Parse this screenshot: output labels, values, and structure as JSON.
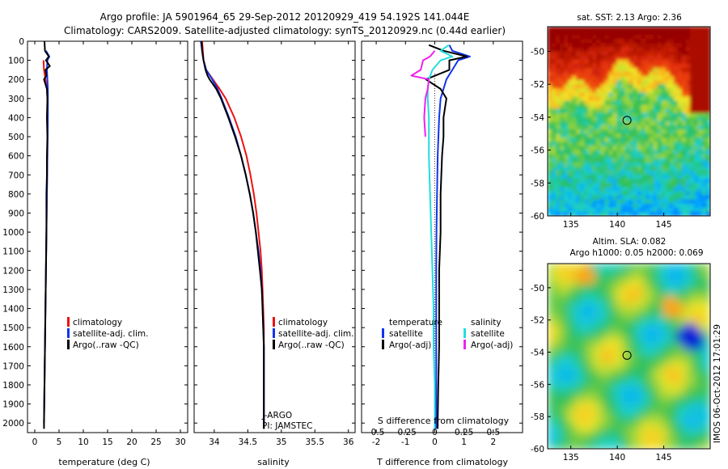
{
  "header": {
    "title_line1": "Argo profile: JA 5901964_65 29-Sep-2012 20120929_419 54.192S 141.044E",
    "title_line2": "Climatology: CARS2009. Satellite-adjusted climatology: synTS_20120929.nc (0.44d earlier)"
  },
  "credit": "IMOS 06-Oct-2012 17:01:29",
  "colors": {
    "climatology": "#ee1111",
    "satellite": "#1133ee",
    "argo": "#000000",
    "satellite_salinity": "#22dddd",
    "argo_salinity": "#ee22ee"
  },
  "chart_data": [
    {
      "type": "line",
      "id": "temperature",
      "xlabel": "temperature (deg C)",
      "xlim": [
        -1.5,
        31.5
      ],
      "ylim": [
        2050,
        0
      ],
      "xticks": [
        0,
        5,
        10,
        15,
        20,
        25,
        30
      ],
      "xtick_labels": [
        "0",
        "5",
        "10",
        "15",
        "20",
        "25",
        "30"
      ],
      "yticks": [
        0,
        100,
        200,
        300,
        400,
        500,
        600,
        700,
        800,
        900,
        1000,
        1100,
        1200,
        1300,
        1400,
        1500,
        1600,
        1700,
        1800,
        1900,
        2000
      ],
      "ytick_labels": [
        "0",
        "100",
        "200",
        "300",
        "400",
        "500",
        "600",
        "700",
        "800",
        "900",
        "1000",
        "1100",
        "1200",
        "1300",
        "1400",
        "1500",
        "1600",
        "1700",
        "1800",
        "1900",
        "2000"
      ],
      "legend": [
        "climatology",
        "satellite-adj. clim.",
        "Argo(..raw -QC)"
      ],
      "legend_position": "center-right",
      "series": [
        {
          "name": "climatology",
          "color": "#ee1111",
          "depth": [
            100,
            150,
            200,
            250,
            300,
            400,
            600,
            800,
            1000,
            1200,
            1400,
            1600,
            1800,
            2000
          ],
          "values": [
            1.8,
            1.9,
            2.2,
            2.5,
            2.6,
            2.6,
            2.6,
            2.5,
            2.4,
            2.3,
            2.2,
            2.1,
            2.0,
            1.9
          ]
        },
        {
          "name": "satellite-adj. clim.",
          "color": "#1133ee",
          "depth": [
            50,
            80,
            100,
            150,
            200,
            250,
            300,
            400,
            600,
            800,
            1000,
            1200,
            1400,
            1600,
            1800,
            2000
          ],
          "values": [
            2.3,
            3.0,
            2.6,
            2.5,
            2.6,
            2.7,
            2.7,
            2.7,
            2.6,
            2.5,
            2.4,
            2.3,
            2.2,
            2.1,
            2.0,
            1.9
          ]
        },
        {
          "name": "Argo(..raw -QC)",
          "color": "#000000",
          "depth": [
            0,
            50,
            80,
            100,
            130,
            150,
            180,
            200,
            250,
            300,
            400,
            500,
            600,
            700,
            800,
            900,
            1000,
            1200,
            1400,
            1600,
            1800,
            2000,
            2030
          ],
          "values": [
            2.0,
            2.1,
            2.9,
            2.3,
            3.1,
            2.2,
            2.4,
            1.9,
            2.5,
            2.6,
            2.5,
            2.6,
            2.5,
            2.5,
            2.4,
            2.4,
            2.4,
            2.3,
            2.2,
            2.1,
            2.0,
            1.9,
            1.9
          ]
        }
      ]
    },
    {
      "type": "line",
      "id": "salinity",
      "xlabel": "salinity",
      "xlim": [
        33.7,
        36.1
      ],
      "ylim": [
        2050,
        0
      ],
      "xticks": [
        34,
        34.5,
        35,
        35.5,
        36
      ],
      "xtick_labels": [
        "34",
        "34.5",
        "35",
        "35.5",
        "36"
      ],
      "legend": [
        "climatology",
        "satellite-adj. clim.",
        "Argo(..raw -QC)"
      ],
      "legend_position": "center-right",
      "annotations": [
        "J-ARGO",
        "PI: JAMSTEC"
      ],
      "series": [
        {
          "name": "climatology",
          "color": "#ee1111",
          "depth": [
            0,
            50,
            100,
            150,
            200,
            250,
            300,
            400,
            500,
            600,
            700,
            800,
            900,
            1000,
            1100,
            1200,
            1300,
            1400,
            1500,
            1600,
            1800,
            2000,
            2030
          ],
          "values": [
            33.82,
            33.83,
            33.84,
            33.88,
            33.98,
            34.08,
            34.17,
            34.3,
            34.4,
            34.48,
            34.54,
            34.59,
            34.63,
            34.66,
            34.69,
            34.71,
            34.72,
            34.73,
            34.74,
            34.74,
            34.74,
            34.74,
            34.74
          ]
        },
        {
          "name": "satellite-adj. clim.",
          "color": "#1133ee",
          "depth": [
            0,
            50,
            100,
            150,
            200,
            250,
            300,
            400,
            500,
            600,
            700,
            800,
            900,
            1000,
            1100,
            1200,
            1300,
            1400,
            1500,
            1600,
            1800,
            2000,
            2030
          ],
          "values": [
            33.8,
            33.82,
            33.84,
            33.88,
            33.97,
            34.05,
            34.11,
            34.22,
            34.32,
            34.4,
            34.47,
            34.53,
            34.58,
            34.62,
            34.66,
            34.69,
            34.71,
            34.72,
            34.73,
            34.74,
            34.74,
            34.74,
            34.74
          ]
        },
        {
          "name": "Argo(..raw -QC)",
          "color": "#000000",
          "depth": [
            0,
            50,
            100,
            150,
            180,
            200,
            250,
            300,
            400,
            500,
            600,
            700,
            800,
            900,
            1000,
            1100,
            1200,
            1300,
            1400,
            1500,
            1600,
            1800,
            2000,
            2030
          ],
          "values": [
            33.81,
            33.82,
            33.84,
            33.87,
            33.9,
            33.93,
            34.03,
            34.1,
            34.21,
            34.31,
            34.4,
            34.47,
            34.53,
            34.58,
            34.62,
            34.65,
            34.68,
            34.71,
            34.72,
            34.73,
            34.74,
            34.74,
            34.74,
            34.74
          ]
        }
      ]
    },
    {
      "type": "line",
      "id": "differences",
      "xlabel": "T difference from climatology",
      "xlabel2": "S difference from climatology",
      "xlim": [
        -2.5,
        3
      ],
      "x2lim": [
        -0.625,
        0.75
      ],
      "ylim": [
        2050,
        0
      ],
      "xticks": [
        -2,
        -1,
        0,
        1,
        2
      ],
      "xtick_labels": [
        "-2",
        "-1",
        "0",
        "1",
        "2"
      ],
      "x2ticks": [
        -0.5,
        -0.25,
        0,
        0.25,
        0.5
      ],
      "x2tick_labels": [
        "-0.5",
        "-0.25",
        "0",
        "0.25",
        "0.5"
      ],
      "legend_groups": [
        {
          "title": "temperature",
          "entries": [
            "satellite",
            "Argo(-adj)"
          ]
        },
        {
          "title": "salinity",
          "entries": [
            "satellite",
            "Argo(-adj)"
          ]
        }
      ],
      "legend_position": "center-right",
      "series": [
        {
          "name": "temperature satellite",
          "color": "#1133ee",
          "axis": "T",
          "depth": [
            20,
            50,
            80,
            100,
            150,
            200,
            250,
            300,
            400,
            600,
            800,
            1000,
            1200,
            1400,
            1600,
            1800,
            2000,
            2030
          ],
          "values": [
            0.5,
            0.6,
            1.2,
            0.8,
            0.6,
            0.4,
            0.3,
            0.2,
            0.15,
            0.1,
            0.08,
            0.06,
            0.05,
            0.05,
            0.05,
            0.05,
            0.05,
            0.05
          ]
        },
        {
          "name": "temperature Argo(-adj)",
          "color": "#000000",
          "axis": "T",
          "depth": [
            20,
            50,
            80,
            100,
            150,
            200,
            250,
            300,
            400,
            500,
            600,
            800,
            1000,
            1200,
            1400,
            1600,
            1800,
            2000,
            2030
          ],
          "values": [
            -0.2,
            0.3,
            1.1,
            0.5,
            0.5,
            -0.3,
            0.2,
            0.4,
            0.3,
            0.3,
            0.25,
            0.2,
            0.2,
            0.15,
            0.15,
            0.15,
            0.12,
            0.1,
            0.1
          ]
        },
        {
          "name": "salinity satellite",
          "color": "#22dddd",
          "axis": "S",
          "depth": [
            20,
            50,
            80,
            100,
            150,
            200,
            250,
            300,
            400,
            600,
            800,
            1000,
            1200,
            1400,
            1600,
            1800,
            2000,
            2030
          ],
          "values": [
            0.12,
            0.05,
            0.15,
            0.05,
            -0.02,
            -0.05,
            -0.06,
            -0.06,
            -0.05,
            -0.05,
            -0.04,
            -0.03,
            -0.02,
            -0.01,
            -0.01,
            0.0,
            0.0,
            0.0
          ]
        },
        {
          "name": "salinity Argo(-adj)",
          "color": "#ee22ee",
          "axis": "S",
          "depth": [
            50,
            80,
            100,
            150,
            180,
            200,
            250,
            300,
            400,
            500
          ],
          "values": [
            0.0,
            -0.04,
            -0.1,
            -0.12,
            -0.2,
            -0.05,
            -0.06,
            -0.08,
            -0.09,
            -0.08
          ]
        }
      ]
    },
    {
      "type": "heatmap",
      "id": "sst_map",
      "title": "sat. SST: 2.13 Argo: 2.36",
      "xlim": [
        132.5,
        150
      ],
      "ylim": [
        -60,
        -48.5
      ],
      "xticks": [
        135,
        140,
        145
      ],
      "xtick_labels": [
        "135",
        "140",
        "145"
      ],
      "yticks": [
        -60,
        -58,
        -56,
        -54,
        -52,
        -50
      ],
      "ytick_labels": [
        "-60",
        "-58",
        "-56",
        "-54",
        "-52",
        "-50"
      ],
      "marker": {
        "lon": 141.044,
        "lat": -54.192
      }
    },
    {
      "type": "heatmap",
      "id": "sla_map",
      "title": "Altim. SLA: 0.082",
      "subtitle": "Argo h1000: 0.05 h2000: 0.069",
      "xlim": [
        132.5,
        150
      ],
      "ylim": [
        -60,
        -48.5
      ],
      "xticks": [
        135,
        140,
        145
      ],
      "xtick_labels": [
        "135",
        "140",
        "145"
      ],
      "yticks": [
        -60,
        -58,
        -56,
        -54,
        -52,
        -50
      ],
      "ytick_labels": [
        "-60",
        "-58",
        "-56",
        "-54",
        "-52",
        "-50"
      ],
      "marker": {
        "lon": 141.044,
        "lat": -54.192
      }
    }
  ]
}
